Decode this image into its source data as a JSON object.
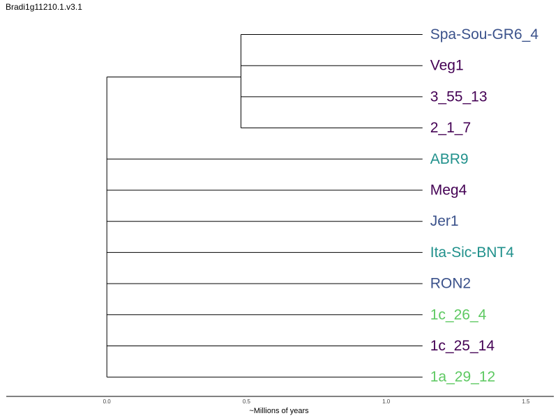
{
  "title": "Bradi1g11210.1.v3.1",
  "axis": {
    "label": "~Millions of years",
    "range": [
      -0.36,
      1.6
    ],
    "ticks": [
      {
        "value": 0.0,
        "label": "0.0"
      },
      {
        "value": 0.5,
        "label": "0.5"
      },
      {
        "value": 1.0,
        "label": "1.0"
      },
      {
        "value": 1.5,
        "label": "1.5"
      }
    ]
  },
  "colors": {
    "dark_purple": "#440154",
    "blue": "#3b528b",
    "teal": "#21918c",
    "green": "#5ec962",
    "branch": "#000000"
  },
  "tree": {
    "root_age": 0.0,
    "tips_age": 1.13,
    "clades": [
      {
        "node_age": 0.48,
        "tips": [
          {
            "label": "Spa-Sou-GR6_4",
            "color": "#3b528b"
          },
          {
            "label": "Veg1",
            "color": "#440154"
          },
          {
            "label": "3_55_13",
            "color": "#440154"
          },
          {
            "label": "2_1_7",
            "color": "#440154"
          }
        ]
      },
      {
        "tips": [
          {
            "label": "ABR9",
            "color": "#21918c"
          }
        ]
      },
      {
        "tips": [
          {
            "label": "Meg4",
            "color": "#440154"
          }
        ]
      },
      {
        "tips": [
          {
            "label": "Jer1",
            "color": "#3b528b"
          }
        ]
      },
      {
        "tips": [
          {
            "label": "Ita-Sic-BNT4",
            "color": "#21918c"
          }
        ]
      },
      {
        "tips": [
          {
            "label": "RON2",
            "color": "#3b528b"
          }
        ]
      },
      {
        "tips": [
          {
            "label": "1c_26_4",
            "color": "#5ec962"
          }
        ]
      },
      {
        "tips": [
          {
            "label": "1c_25_14",
            "color": "#440154"
          }
        ]
      },
      {
        "tips": [
          {
            "label": "1a_29_12",
            "color": "#5ec962"
          }
        ]
      }
    ]
  }
}
